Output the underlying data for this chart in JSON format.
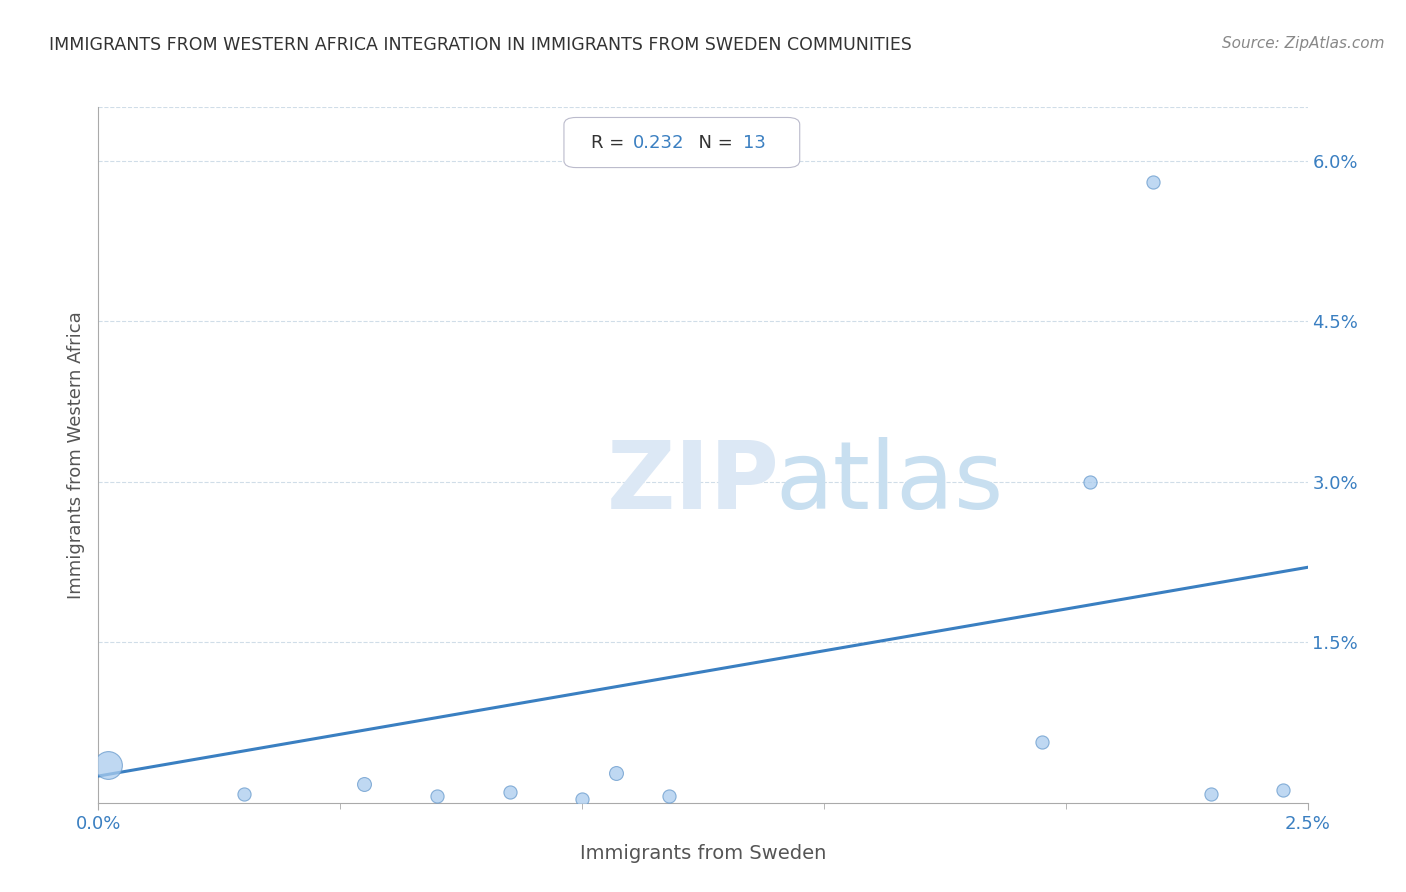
{
  "title": "IMMIGRANTS FROM WESTERN AFRICA INTEGRATION IN IMMIGRANTS FROM SWEDEN COMMUNITIES",
  "source": "Source: ZipAtlas.com",
  "xlabel": "Immigrants from Sweden",
  "ylabel": "Immigrants from Western Africa",
  "R_value": "0.232",
  "N_value": "13",
  "xlim": [
    0.0,
    0.025
  ],
  "ylim": [
    0.0,
    0.065
  ],
  "xticks": [
    0.0,
    0.025
  ],
  "xtick_labels": [
    "0.0%",
    "2.5%"
  ],
  "ytick_labels": [
    "1.5%",
    "3.0%",
    "4.5%",
    "6.0%"
  ],
  "ytick_values": [
    0.015,
    0.03,
    0.045,
    0.06
  ],
  "scatter_color": "#aaccee",
  "scatter_edge_color": "#6699cc",
  "line_color": "#3a7fc1",
  "title_color": "#333333",
  "axis_label_color": "#555555",
  "tick_label_color": "#3a7fc1",
  "background_color": "#ffffff",
  "grid_color": "#d0dde8",
  "watermark_zip_color": "#dce8f5",
  "watermark_atlas_color": "#c8dff0",
  "scatter_x": [
    0.0002,
    0.003,
    0.0055,
    0.007,
    0.0085,
    0.01,
    0.0107,
    0.0118,
    0.0195,
    0.0205,
    0.0218,
    0.023,
    0.0245
  ],
  "scatter_y": [
    0.0035,
    0.0008,
    0.0018,
    0.0006,
    0.001,
    0.0004,
    0.0028,
    0.0006,
    0.0057,
    0.03,
    0.058,
    0.0008,
    0.0012
  ],
  "scatter_sizes": [
    400,
    90,
    100,
    90,
    90,
    90,
    100,
    90,
    90,
    90,
    90,
    90,
    90
  ],
  "trendline_x": [
    0.0,
    0.025
  ],
  "trendline_y": [
    0.0025,
    0.022
  ],
  "fig_width": 14.06,
  "fig_height": 8.92,
  "dpi": 100
}
